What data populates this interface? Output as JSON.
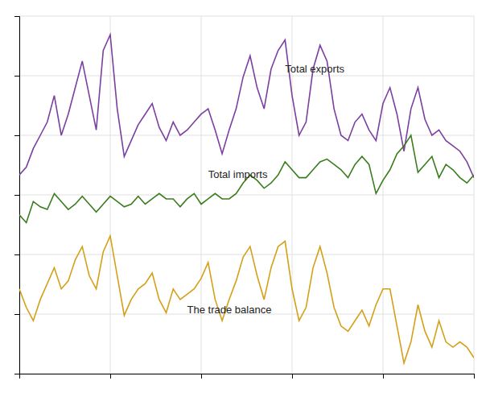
{
  "chart_data": {
    "type": "line",
    "x": [
      0,
      1,
      2,
      3,
      4,
      5,
      6,
      7,
      8,
      9,
      10,
      11,
      12,
      13,
      14,
      15,
      16,
      17,
      18,
      19,
      20,
      21,
      22,
      23,
      24,
      25,
      26,
      27,
      28,
      29,
      30,
      31,
      32,
      33,
      34,
      35,
      36,
      37,
      38,
      39,
      40,
      41,
      42,
      43,
      44,
      45,
      46,
      47,
      48,
      49,
      50,
      51,
      52,
      53,
      54,
      55,
      56,
      57,
      58,
      59,
      60,
      61,
      62,
      63,
      64,
      65
    ],
    "series": [
      {
        "name": "Total exports",
        "color": "#7b3fa0",
        "values": [
          75,
          78,
          85,
          90,
          95,
          105,
          90,
          98,
          108,
          118,
          105,
          92,
          122,
          128,
          100,
          82,
          88,
          94,
          98,
          102,
          93,
          88,
          95,
          90,
          92,
          95,
          98,
          100,
          92,
          83,
          92,
          100,
          112,
          120,
          108,
          100,
          115,
          122,
          126,
          105,
          90,
          95,
          115,
          124,
          118,
          100,
          90,
          88,
          95,
          98,
          92,
          88,
          102,
          108,
          98,
          84,
          100,
          108,
          96,
          90,
          92,
          88,
          86,
          84,
          80,
          74
        ]
      },
      {
        "name": "Total imports",
        "color": "#3a7d1e",
        "values": [
          60,
          57,
          65,
          63,
          62,
          68,
          65,
          62,
          64,
          67,
          64,
          61,
          64,
          67,
          65,
          63,
          64,
          67,
          64,
          66,
          68,
          66,
          66,
          63,
          66,
          68,
          64,
          66,
          68,
          66,
          66,
          68,
          72,
          75,
          73,
          70,
          72,
          75,
          80,
          77,
          74,
          74,
          77,
          80,
          81,
          79,
          77,
          74,
          79,
          82,
          79,
          68,
          73,
          77,
          83,
          86,
          90,
          76,
          79,
          82,
          74,
          79,
          77,
          74,
          72,
          75
        ]
      },
      {
        "name": "The trade balance",
        "color": "#d4a017",
        "values": [
          32,
          25,
          20,
          28,
          34,
          40,
          32,
          35,
          43,
          48,
          37,
          32,
          46,
          52,
          37,
          22,
          28,
          32,
          34,
          38,
          28,
          23,
          32,
          28,
          30,
          32,
          36,
          42,
          28,
          20,
          28,
          35,
          44,
          48,
          37,
          28,
          40,
          48,
          50,
          32,
          20,
          25,
          40,
          48,
          38,
          25,
          18,
          16,
          20,
          24,
          18,
          26,
          32,
          32,
          18,
          4,
          12,
          26,
          16,
          10,
          20,
          12,
          10,
          12,
          10,
          6
        ]
      }
    ],
    "annotations": [
      {
        "text": "Total exports",
        "x": 38,
        "y": 113
      },
      {
        "text": "Total imports",
        "x": 27,
        "y": 73
      },
      {
        "text": "The trade balance",
        "x": 24,
        "y": 22
      }
    ],
    "xlim": [
      0,
      65
    ],
    "xticks": [
      0,
      13,
      26,
      39,
      52,
      65
    ],
    "ylim": [
      0,
      135
    ],
    "yticks": [
      0,
      22.5,
      45,
      67.5,
      90,
      112.5,
      135
    ],
    "grid": true,
    "tick_labels": false
  }
}
